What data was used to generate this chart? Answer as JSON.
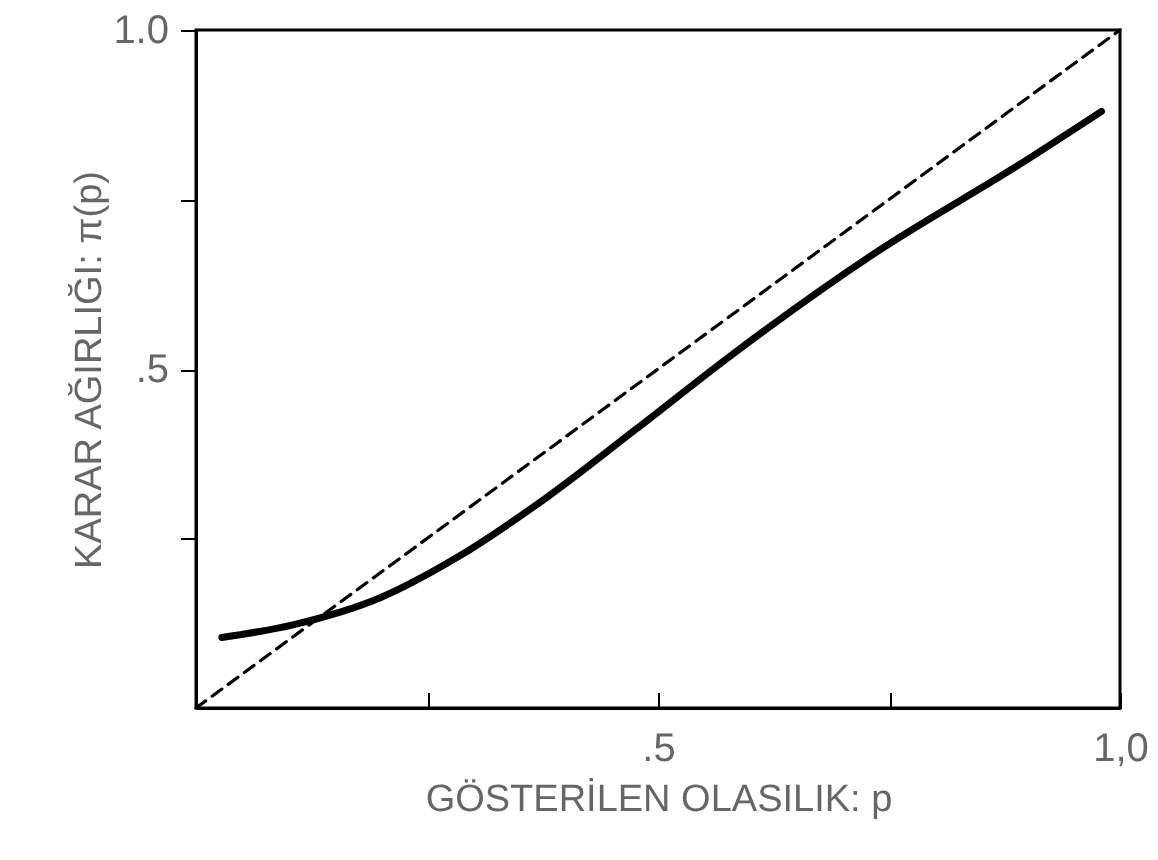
{
  "chart_data": {
    "type": "line",
    "xlabel": "GÖSTERİLEN OLASILIK: p",
    "ylabel": "KARAR AĞIRLIĞI: π(p)",
    "xlim": [
      0,
      1
    ],
    "ylim": [
      0,
      1
    ],
    "xticks": [
      {
        "value": 0.25,
        "label": null
      },
      {
        "value": 0.5,
        "label": ".5"
      },
      {
        "value": 0.75,
        "label": null
      },
      {
        "value": 1,
        "label": "1,0"
      }
    ],
    "yticks": [
      {
        "value": 0.25,
        "label": null
      },
      {
        "value": 0.5,
        "label": ".5"
      },
      {
        "value": 0.75,
        "label": null
      },
      {
        "value": 1,
        "label": "1.0"
      }
    ],
    "grid": false,
    "series": [
      {
        "color": "#000000",
        "line_style": "solid",
        "x": [
          0.028,
          0.106,
          0.2,
          0.28,
          0.382,
          0.476,
          0.579,
          0.736,
          0.894,
          0.98
        ],
        "values": [
          0.104,
          0.123,
          0.163,
          0.22,
          0.313,
          0.411,
          0.52,
          0.672,
          0.804,
          0.88
        ]
      },
      {
        "color": "#000000",
        "line_style": "dashed",
        "x": [
          0,
          1
        ],
        "values": [
          0,
          1
        ]
      }
    ]
  }
}
